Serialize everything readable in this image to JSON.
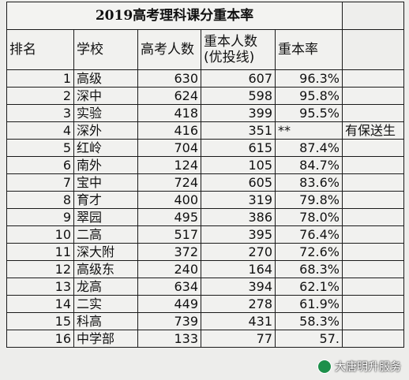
{
  "title": "2019高考理科课分重本率",
  "headers": {
    "rank": "排名",
    "school": "学校",
    "exam_count": "高考人数",
    "key_count_line1": "重本人数",
    "key_count_line2": "(优投线)",
    "key_rate": "重本率"
  },
  "rows": [
    {
      "rank": "1",
      "school": "高级",
      "exam": "630",
      "key": "607",
      "rate": "96.3%",
      "note": ""
    },
    {
      "rank": "2",
      "school": "深中",
      "exam": "624",
      "key": "598",
      "rate": "95.8%",
      "note": ""
    },
    {
      "rank": "3",
      "school": "实验",
      "exam": "418",
      "key": "399",
      "rate": "95.5%",
      "note": ""
    },
    {
      "rank": "4",
      "school": "深外",
      "exam": "416",
      "key": "351",
      "rate": "**",
      "note": "有保送生"
    },
    {
      "rank": "5",
      "school": "红岭",
      "exam": "704",
      "key": "615",
      "rate": "87.4%",
      "note": ""
    },
    {
      "rank": "6",
      "school": "南外",
      "exam": "124",
      "key": "105",
      "rate": "84.7%",
      "note": ""
    },
    {
      "rank": "7",
      "school": "宝中",
      "exam": "724",
      "key": "605",
      "rate": "83.6%",
      "note": ""
    },
    {
      "rank": "8",
      "school": "育才",
      "exam": "400",
      "key": "319",
      "rate": "79.8%",
      "note": ""
    },
    {
      "rank": "9",
      "school": "翠园",
      "exam": "495",
      "key": "386",
      "rate": "78.0%",
      "note": ""
    },
    {
      "rank": "10",
      "school": "二高",
      "exam": "517",
      "key": "395",
      "rate": "76.4%",
      "note": ""
    },
    {
      "rank": "11",
      "school": "深大附",
      "exam": "372",
      "key": "270",
      "rate": "72.6%",
      "note": ""
    },
    {
      "rank": "12",
      "school": "高级东",
      "exam": "240",
      "key": "164",
      "rate": "68.3%",
      "note": ""
    },
    {
      "rank": "13",
      "school": "龙高",
      "exam": "634",
      "key": "394",
      "rate": "62.1%",
      "note": ""
    },
    {
      "rank": "14",
      "school": "二实",
      "exam": "449",
      "key": "278",
      "rate": "61.9%",
      "note": ""
    },
    {
      "rank": "15",
      "school": "科高",
      "exam": "739",
      "key": "431",
      "rate": "58.3%",
      "note": ""
    },
    {
      "rank": "16",
      "school": "中学部",
      "exam": "133",
      "key": "77",
      "rate": "57.",
      "note": ""
    }
  ],
  "watermark": "大唐明升服务"
}
